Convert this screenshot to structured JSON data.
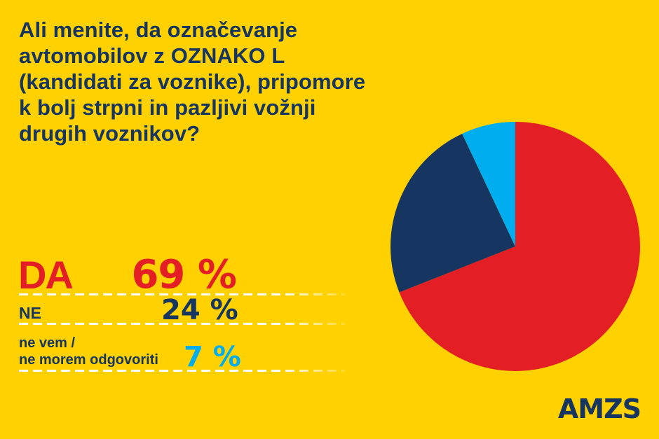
{
  "title_lines": [
    "Ali menite, da označevanje",
    "avtomobilov z OZNAKO L",
    "(kandidati za voznike), pripomore",
    "k bolj strpni in pazljivi vožnji",
    "drugih voznikov?"
  ],
  "results": {
    "da": {
      "label": "DA",
      "value": "69 %",
      "color": "#E31E24"
    },
    "ne": {
      "label": "NE",
      "value": "24 %",
      "color": "#163560"
    },
    "ne_vem": {
      "label_line1": "ne vem /",
      "label_line2": "ne morem odgovoriti",
      "value": "7 %",
      "color": "#00AEEF"
    }
  },
  "logo": "AMZS",
  "colors": {
    "background": "#FFD100",
    "text": "#163560",
    "red": "#E31E24",
    "navy": "#163560",
    "cyan": "#00AEEF"
  },
  "chart_data": {
    "type": "pie",
    "title": "Ali menite, da označevanje avtomobilov z OZNAKO L (kandidati za voznike), pripomore k bolj strpni in pazljivi vožnji drugih voznikov?",
    "categories": [
      "DA",
      "NE",
      "ne vem / ne morem odgovoriti"
    ],
    "values": [
      69,
      24,
      7
    ],
    "colors": [
      "#E31E24",
      "#163560",
      "#00AEEF"
    ],
    "unit": "%",
    "start_angle": "12 o'clock, clockwise",
    "legend_position": "left"
  }
}
